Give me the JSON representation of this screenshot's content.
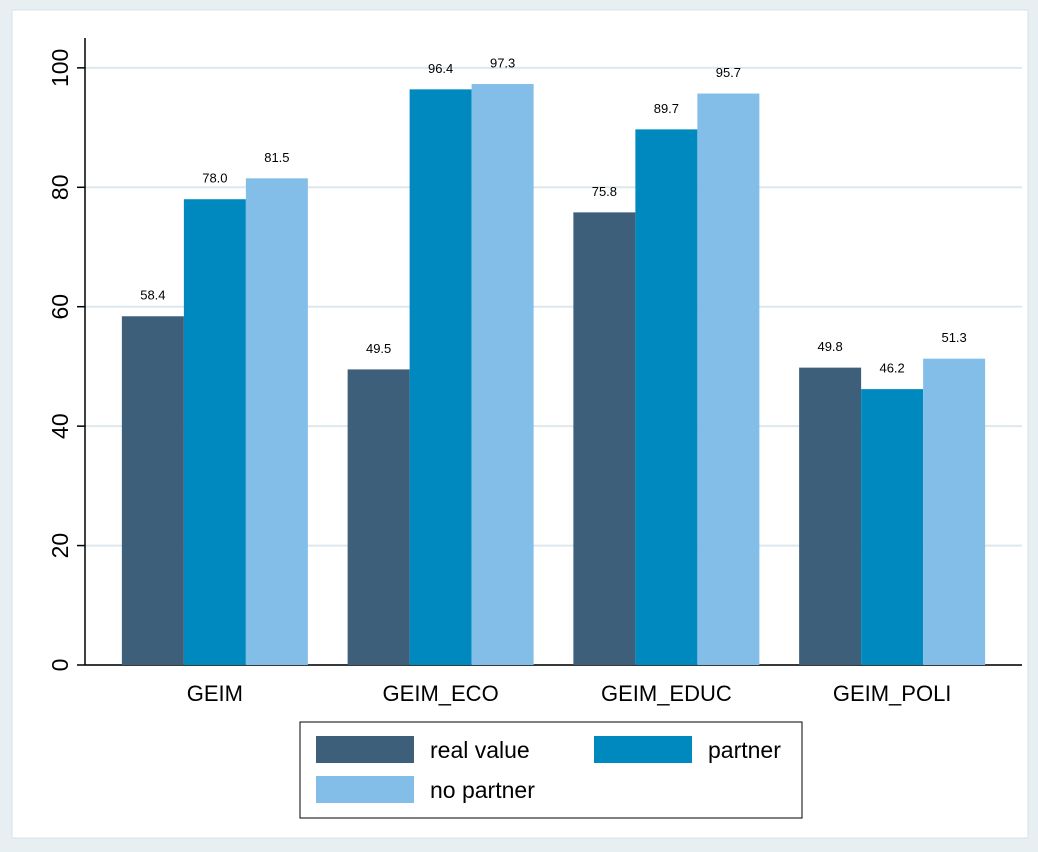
{
  "chart_data": {
    "type": "bar",
    "categories": [
      "GEIM",
      "GEIM_ECO",
      "GEIM_EDUC",
      "GEIM_POLI"
    ],
    "series": [
      {
        "name": "real value",
        "color": "#3e5f7a",
        "values": [
          58.4,
          49.5,
          75.8,
          49.8
        ],
        "value_labels": [
          "58.4",
          "49.5",
          "75.8",
          "49.8"
        ]
      },
      {
        "name": "partner",
        "color": "#0089bf",
        "values": [
          78.0,
          96.4,
          89.7,
          46.2
        ],
        "value_labels": [
          "78.0",
          "96.4",
          "89.7",
          "46.2"
        ]
      },
      {
        "name": "no partner",
        "color": "#83bee8",
        "values": [
          81.5,
          97.3,
          95.7,
          51.3
        ],
        "value_labels": [
          "81.5",
          "97.3",
          "95.7",
          "51.3"
        ]
      }
    ],
    "ylim": [
      0,
      105
    ],
    "yticks": [
      0,
      20,
      40,
      60,
      80,
      100
    ],
    "grid": true,
    "legend": "bottom"
  }
}
